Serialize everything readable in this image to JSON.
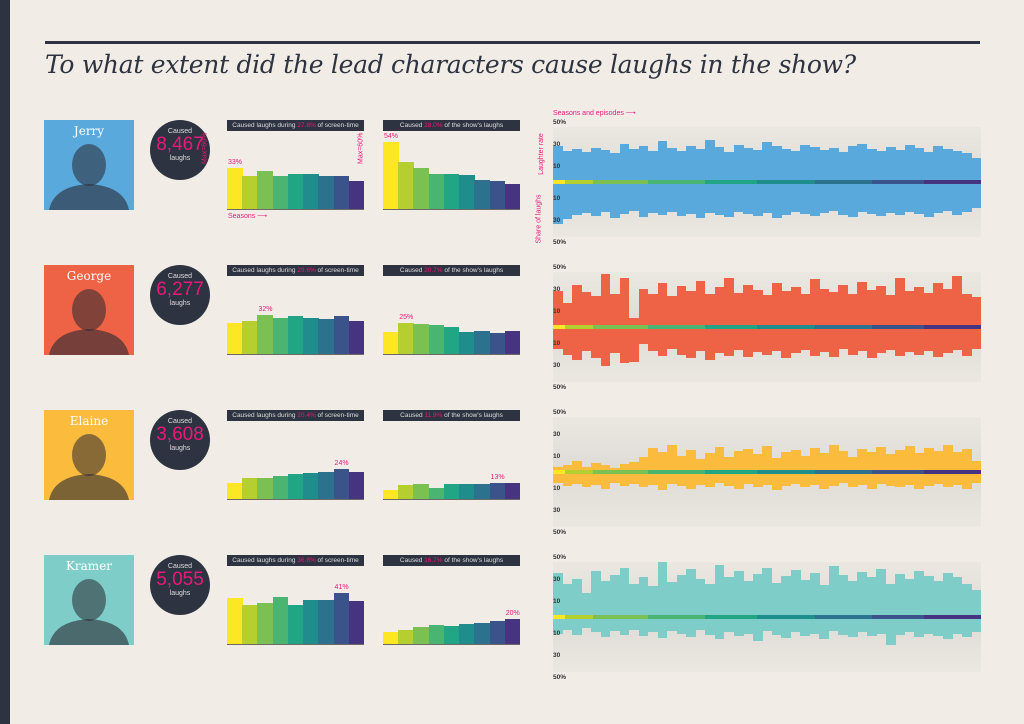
{
  "title": "To what extent did the lead characters cause laughs in the show?",
  "labels": {
    "caused": "Caused",
    "laughs": "laughs",
    "max": "Max=60%",
    "seasons": "Seasons ⟶",
    "seasons_episodes": "Seasons and episodes ⟶",
    "share": "Share of laughs",
    "rate": "Laughter rate",
    "hdr1_pre": "Caused laughs during ",
    "hdr1_post": " of screen-time",
    "hdr2_pre": "Caused ",
    "hdr2_post": " of the show's laughs",
    "ticks": [
      "50%",
      "30",
      "10",
      "10",
      "30",
      "50%"
    ]
  },
  "season_colors": [
    "#fde725",
    "#b5cf30",
    "#7ac052",
    "#4ab573",
    "#21a585",
    "#1f8d8b",
    "#2c718e",
    "#3a548b",
    "#463480"
  ],
  "chart_data": {
    "type": "bar",
    "seasons": [
      1,
      2,
      3,
      4,
      5,
      6,
      7,
      8,
      9
    ],
    "bar_ylim": [
      0,
      60
    ],
    "episode_ylim": [
      0,
      50
    ],
    "characters": [
      {
        "name": "Jerry",
        "color": "#5aa9dc",
        "laughs": "8,467",
        "screen_time": "27.8%",
        "share": "28.0%",
        "screen_series": [
          33,
          26.5,
          30.5,
          26.5,
          28.5,
          28,
          27,
          27,
          22.5
        ],
        "screen_label": "33%",
        "share_series": [
          54,
          38,
          33.5,
          28.5,
          28,
          27.5,
          23.5,
          22.5,
          20.5
        ],
        "share_label": "54%",
        "episode_rate": [
          33,
          28,
          30,
          27,
          31,
          29,
          26,
          35,
          30,
          33,
          28,
          37,
          31,
          28,
          33,
          30,
          38,
          32,
          27,
          34,
          31,
          29,
          36,
          33,
          30,
          28,
          34,
          32,
          29,
          31,
          27,
          33,
          35,
          30,
          28,
          32,
          29,
          34,
          31,
          27,
          33,
          30,
          28,
          26,
          22
        ],
        "episode_share": [
          38,
          34,
          30,
          28,
          31,
          27,
          33,
          29,
          26,
          32,
          28,
          30,
          27,
          31,
          29,
          33,
          28,
          30,
          32,
          27,
          29,
          31,
          28,
          33,
          30,
          27,
          29,
          31,
          28,
          26,
          30,
          32,
          27,
          29,
          31,
          28,
          30,
          27,
          29,
          32,
          28,
          26,
          30,
          27,
          24
        ]
      },
      {
        "name": "George",
        "color": "#ee6346",
        "laughs": "6,277",
        "screen_time": "29.6%",
        "share": "20.7%",
        "screen_series": [
          25,
          27,
          32,
          29,
          31,
          29,
          28,
          31,
          27
        ],
        "screen_label": "32%",
        "share_series": [
          17.5,
          25,
          24,
          23.5,
          21.5,
          18,
          18.5,
          17,
          19
        ],
        "share_label": "25%",
        "episode_rate": [
          33,
          22,
          38,
          32,
          28,
          48,
          30,
          45,
          8,
          35,
          30,
          40,
          28,
          37,
          33,
          42,
          30,
          36,
          45,
          31,
          38,
          34,
          29,
          40,
          33,
          36,
          30,
          44,
          35,
          32,
          38,
          30,
          41,
          34,
          37,
          29,
          45,
          33,
          36,
          31,
          40,
          35,
          46,
          30,
          27
        ],
        "episode_share": [
          20,
          25,
          30,
          22,
          28,
          35,
          24,
          33,
          32,
          15,
          22,
          26,
          20,
          25,
          28,
          22,
          30,
          24,
          26,
          21,
          27,
          23,
          25,
          22,
          28,
          24,
          21,
          26,
          23,
          27,
          20,
          25,
          22,
          28,
          24,
          21,
          26,
          23,
          25,
          22,
          27,
          24,
          21,
          26,
          20
        ]
      },
      {
        "name": "Elaine",
        "color": "#fbbb3d",
        "laughs": "3,608",
        "screen_time": "20.4%",
        "share": "11.9%",
        "screen_series": [
          13,
          17,
          17,
          19,
          20,
          21,
          22,
          24,
          21.5
        ],
        "screen_label": "24%",
        "share_series": [
          7.5,
          11.5,
          12,
          9,
          12,
          12.5,
          12,
          13,
          13
        ],
        "share_label": "13%",
        "episode_rate": [
          5,
          6,
          10,
          5,
          8,
          6,
          4,
          7,
          9,
          14,
          22,
          18,
          25,
          15,
          20,
          12,
          17,
          23,
          14,
          19,
          21,
          16,
          24,
          13,
          18,
          20,
          15,
          22,
          17,
          25,
          19,
          14,
          21,
          18,
          23,
          16,
          20,
          24,
          17,
          22,
          19,
          25,
          18,
          21,
          10
        ],
        "episode_share": [
          10,
          13,
          11,
          14,
          12,
          15,
          10,
          13,
          11,
          14,
          12,
          16,
          11,
          13,
          15,
          12,
          14,
          10,
          13,
          15,
          11,
          14,
          12,
          16,
          13,
          11,
          14,
          12,
          15,
          13,
          10,
          14,
          12,
          15,
          11,
          13,
          14,
          12,
          15,
          13,
          11,
          14,
          12,
          15,
          10
        ]
      },
      {
        "name": "Kramer",
        "color": "#7fcdc8",
        "laughs": "5,055",
        "screen_time": "36.8%",
        "share": "16.7%",
        "screen_series": [
          37,
          31.5,
          33,
          38.5,
          32,
          36,
          36,
          41,
          34.5
        ],
        "screen_label": "41%",
        "share_series": [
          9.5,
          11.5,
          14,
          15.5,
          14.5,
          16.5,
          17,
          19,
          20
        ],
        "share_label": "20%",
        "episode_rate": [
          40,
          30,
          35,
          22,
          42,
          33,
          38,
          45,
          30,
          36,
          28,
          50,
          32,
          38,
          44,
          35,
          30,
          47,
          36,
          42,
          33,
          39,
          45,
          31,
          37,
          43,
          34,
          40,
          29,
          46,
          38,
          33,
          41,
          36,
          44,
          30,
          39,
          35,
          42,
          37,
          33,
          40,
          36,
          30,
          25
        ],
        "episode_share": [
          15,
          12,
          16,
          10,
          14,
          18,
          13,
          16,
          12,
          17,
          14,
          19,
          13,
          15,
          18,
          12,
          16,
          20,
          14,
          17,
          15,
          22,
          13,
          16,
          19,
          14,
          17,
          15,
          20,
          13,
          16,
          18,
          14,
          17,
          15,
          25,
          16,
          14,
          18,
          15,
          17,
          20,
          15,
          18,
          14
        ]
      }
    ]
  }
}
